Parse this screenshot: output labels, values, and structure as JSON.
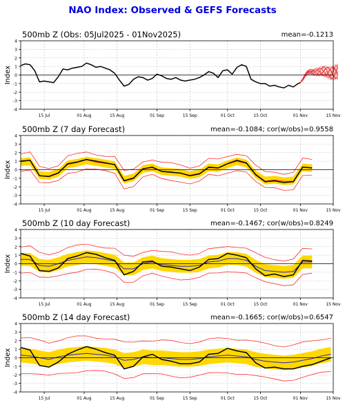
{
  "main_title": "NAO Index: Observed & GEFS Forecasts",
  "colors": {
    "title": "#0000dd",
    "observed": "#000000",
    "band": "#ffd800",
    "envelope": "#ff2a2a",
    "ensemble_mean": "#2222cc",
    "members": "#e53030",
    "grid": "#b9b9b9",
    "zero_line": "#000000"
  },
  "chart_data": [
    {
      "type": "line",
      "title": "500mb Z (Obs: 05Jul2025 - 01Nov2025)",
      "stats": "mean=-0.1213",
      "ylabel": "Index",
      "ylim": [
        -4,
        4
      ],
      "yticks": [
        -4,
        -3,
        -2,
        -1,
        0,
        1,
        2,
        3,
        4
      ],
      "xticks": [
        "15 Jul",
        "01 Aug",
        "15 Aug",
        "01 Sep",
        "15 Sep",
        "01 Oct",
        "15 Oct",
        "01 Nov",
        "15 Nov"
      ],
      "xtick_days": [
        10,
        27,
        41,
        58,
        72,
        88,
        102,
        119,
        133
      ],
      "xlim_days": [
        0,
        133
      ],
      "observed": {
        "days": [
          0,
          2,
          4,
          6,
          8,
          10,
          12,
          14,
          16,
          18,
          20,
          22,
          24,
          26,
          28,
          30,
          32,
          34,
          36,
          38,
          40,
          42,
          44,
          46,
          48,
          50,
          52,
          54,
          56,
          58,
          60,
          62,
          64,
          66,
          68,
          70,
          72,
          74,
          76,
          78,
          80,
          82,
          84,
          86,
          88,
          90,
          92,
          94,
          96,
          98,
          100,
          102,
          104,
          106,
          108,
          110,
          112,
          114,
          116,
          118,
          119
        ],
        "values": [
          1.1,
          1.3,
          1.2,
          0.5,
          -0.8,
          -0.7,
          -0.8,
          -0.9,
          -0.2,
          0.7,
          0.6,
          0.8,
          0.9,
          1.0,
          1.4,
          1.2,
          0.9,
          1.0,
          0.8,
          0.6,
          0.2,
          -0.6,
          -1.3,
          -1.1,
          -0.5,
          -0.2,
          -0.3,
          -0.6,
          -0.4,
          0.1,
          -0.1,
          -0.4,
          -0.5,
          -0.3,
          -0.6,
          -0.7,
          -0.6,
          -0.5,
          -0.3,
          0.0,
          0.4,
          0.2,
          -0.3,
          0.5,
          0.6,
          0.1,
          0.9,
          1.2,
          1.0,
          -0.5,
          -0.8,
          -1.0,
          -1.0,
          -1.3,
          -1.2,
          -1.4,
          -1.5,
          -1.2,
          -1.4,
          -1.0,
          -0.9
        ]
      },
      "forecast_members": {
        "start_day": 119,
        "end_day": 135,
        "spread_range": [
          -0.6,
          1.4
        ],
        "mean_path": [
          -0.9,
          0.4,
          0.3,
          0.5,
          0.2,
          0.4
        ]
      }
    },
    {
      "type": "line",
      "title": "500mb Z (7 day Forecast)",
      "stats": "mean=-0.1084; cor(w/obs)=0.9558",
      "ylabel": "Index",
      "ylim": [
        -4,
        4
      ],
      "yticks": [
        -4,
        -3,
        -2,
        -1,
        0,
        1,
        2,
        3,
        4
      ],
      "xticks": [
        "15 Jul",
        "01 Aug",
        "15 Aug",
        "01 Sep",
        "15 Sep",
        "01 Oct",
        "15 Oct",
        "01 Nov",
        "15 Nov"
      ],
      "xtick_days": [
        10,
        27,
        41,
        58,
        72,
        88,
        102,
        119,
        133
      ],
      "xlim_days": [
        0,
        133
      ],
      "observed_days": [
        0,
        4,
        8,
        12,
        16,
        20,
        24,
        28,
        32,
        36,
        40,
        44,
        48,
        52,
        56,
        60,
        64,
        68,
        72,
        76,
        80,
        84,
        88,
        92,
        96,
        100,
        104,
        108,
        112,
        116,
        120,
        124
      ],
      "observed": [
        1.0,
        1.1,
        -0.7,
        -0.8,
        -0.4,
        0.7,
        0.9,
        1.2,
        1.0,
        0.8,
        0.6,
        -1.3,
        -1.0,
        0.1,
        0.3,
        -0.2,
        -0.3,
        -0.4,
        -0.7,
        -0.5,
        0.3,
        0.2,
        0.7,
        1.1,
        0.8,
        -0.6,
        -1.4,
        -1.3,
        -1.5,
        -1.4,
        0.3,
        0.2
      ],
      "band_halfwidth": 0.45,
      "envelope_halfwidth": 0.95
    },
    {
      "type": "line",
      "title": "500mb Z (10 day Forecast)",
      "stats": "mean=-0.1467; cor(w/obs)=0.8249",
      "ylabel": "Index",
      "ylim": [
        -4,
        4
      ],
      "yticks": [
        -4,
        -3,
        -2,
        -1,
        0,
        1,
        2,
        3,
        4
      ],
      "xticks": [
        "15 Jul",
        "01 Aug",
        "15 Aug",
        "01 Sep",
        "15 Sep",
        "01 Oct",
        "15 Oct",
        "01 Nov",
        "15 Nov"
      ],
      "xtick_days": [
        10,
        27,
        41,
        58,
        72,
        88,
        102,
        119,
        133
      ],
      "xlim_days": [
        0,
        133
      ],
      "observed_days": [
        0,
        4,
        8,
        12,
        16,
        20,
        24,
        28,
        32,
        36,
        40,
        44,
        48,
        52,
        56,
        60,
        64,
        68,
        72,
        76,
        80,
        84,
        88,
        92,
        96,
        100,
        104,
        108,
        112,
        116,
        120,
        124
      ],
      "observed": [
        1.2,
        0.9,
        -0.8,
        -0.9,
        -0.5,
        0.6,
        0.9,
        1.3,
        1.1,
        0.7,
        0.4,
        -1.3,
        -0.9,
        0.2,
        0.3,
        -0.3,
        -0.4,
        -0.6,
        -0.8,
        -0.4,
        0.5,
        0.6,
        1.2,
        1.0,
        0.7,
        -0.6,
        -1.4,
        -1.2,
        -1.5,
        -1.3,
        0.4,
        0.3
      ],
      "mean_line": [
        0.5,
        0.5,
        -0.2,
        -0.3,
        0.0,
        0.4,
        0.6,
        0.8,
        0.7,
        0.5,
        0.3,
        -0.6,
        -0.6,
        0.0,
        0.2,
        -0.1,
        -0.2,
        -0.3,
        -0.3,
        -0.2,
        0.2,
        0.3,
        0.6,
        0.6,
        0.4,
        -0.3,
        -0.8,
        -0.9,
        -1.0,
        -0.9,
        0.2,
        0.2
      ],
      "band_halfwidth": 0.75,
      "envelope_halfwidth": 1.45
    },
    {
      "type": "line",
      "title": "500mb Z (14 day Forecast)",
      "stats": "mean=-0.1665; cor(w/obs)=0.6547",
      "ylabel": "Index",
      "ylim": [
        -4,
        4
      ],
      "yticks": [
        -4,
        -3,
        -2,
        -1,
        0,
        1,
        2,
        3,
        4
      ],
      "xticks": [
        "15 Jul",
        "01 Aug",
        "15 Aug",
        "01 Sep",
        "15 Sep",
        "01 Oct",
        "15 Oct",
        "01 Nov",
        "15 Nov"
      ],
      "xtick_days": [
        10,
        27,
        41,
        58,
        72,
        88,
        102,
        119,
        133
      ],
      "xlim_days": [
        0,
        133
      ],
      "observed_days": [
        0,
        4,
        8,
        12,
        16,
        20,
        24,
        28,
        32,
        36,
        40,
        44,
        48,
        52,
        56,
        60,
        64,
        68,
        72,
        76,
        80,
        84,
        88,
        92,
        96,
        100,
        104,
        108,
        112,
        116,
        120,
        124,
        128,
        132
      ],
      "observed": [
        1.2,
        0.9,
        -0.9,
        -1.1,
        -0.5,
        0.4,
        0.9,
        1.3,
        1.0,
        0.6,
        0.3,
        -1.3,
        -1.0,
        0.1,
        0.4,
        -0.2,
        -0.4,
        -0.7,
        -0.7,
        -0.5,
        0.4,
        0.5,
        1.1,
        0.8,
        0.6,
        -0.6,
        -1.2,
        -1.1,
        -1.3,
        -1.3,
        -1.0,
        -0.8,
        -0.4,
        0.0
      ],
      "mean_line": [
        0.3,
        0.2,
        0.0,
        -0.2,
        0.1,
        0.3,
        0.4,
        0.5,
        0.4,
        0.3,
        0.1,
        -0.3,
        -0.2,
        0.1,
        0.0,
        0.0,
        -0.1,
        -0.2,
        -0.2,
        -0.1,
        0.1,
        0.2,
        0.3,
        0.2,
        0.1,
        -0.2,
        -0.4,
        -0.5,
        -0.6,
        -0.5,
        -0.3,
        -0.1,
        0.2,
        0.4
      ],
      "band_halfwidth": 0.85,
      "envelope_halfwidth": 2.0
    }
  ]
}
